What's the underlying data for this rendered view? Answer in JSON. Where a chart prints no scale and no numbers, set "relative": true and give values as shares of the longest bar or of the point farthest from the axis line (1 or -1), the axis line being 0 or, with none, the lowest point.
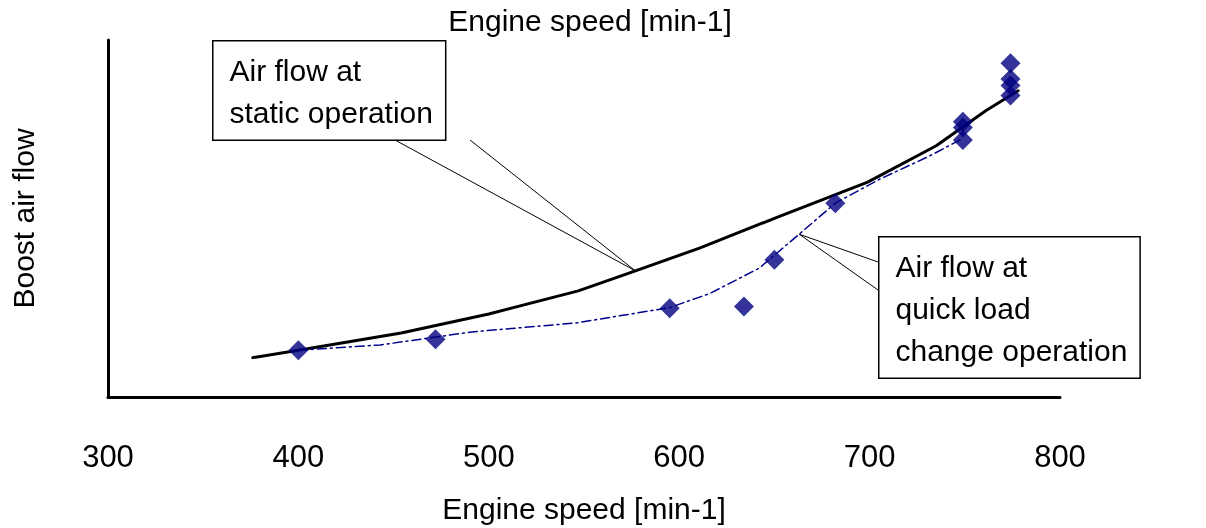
{
  "chart_data": {
    "type": "line",
    "title": "Engine speed [min-1]",
    "xlabel": "Engine speed [min-1]",
    "ylabel": "Boost air flow",
    "relative": true,
    "xlim": [
      300,
      800
    ],
    "xticks": [
      300,
      400,
      500,
      600,
      700,
      800
    ],
    "grid": false,
    "series": [
      {
        "color": "#000000",
        "line_style": "solid",
        "marker": "none",
        "x": [
          376,
          400,
          454,
          500,
          547,
          577,
          611,
          652,
          699,
          735,
          761,
          778
        ],
        "values": [
          0.118,
          0.14,
          0.192,
          0.249,
          0.318,
          0.378,
          0.447,
          0.54,
          0.644,
          0.753,
          0.858,
          0.918
        ]
      },
      {
        "type": "line",
        "color": "#00008b",
        "line_style": "dashed",
        "marker": "none",
        "x": [
          400,
          443,
          491,
          546,
          595,
          616,
          642,
          663,
          682,
          705,
          731,
          749
        ],
        "values": [
          0.14,
          0.156,
          0.195,
          0.222,
          0.268,
          0.31,
          0.386,
          0.488,
          0.581,
          0.652,
          0.721,
          0.775
        ]
      },
      {
        "type": "scatter",
        "color": "#000080",
        "marker": "diamond",
        "x": [
          400,
          472,
          595,
          634,
          650,
          682,
          749,
          749,
          749,
          774,
          774,
          774,
          774
        ],
        "values": [
          0.14,
          0.173,
          0.266,
          0.271,
          0.411,
          0.581,
          0.825,
          0.808,
          0.77,
          1.0,
          0.953,
          0.934,
          0.904
        ]
      }
    ],
    "annotations": [
      {
        "text": "Air flow at\nstatic operation",
        "x": 577,
        "y": 0.378
      },
      {
        "text": "Air flow at\nquick load\nchange operation",
        "x": 663,
        "y": 0.488
      }
    ]
  }
}
